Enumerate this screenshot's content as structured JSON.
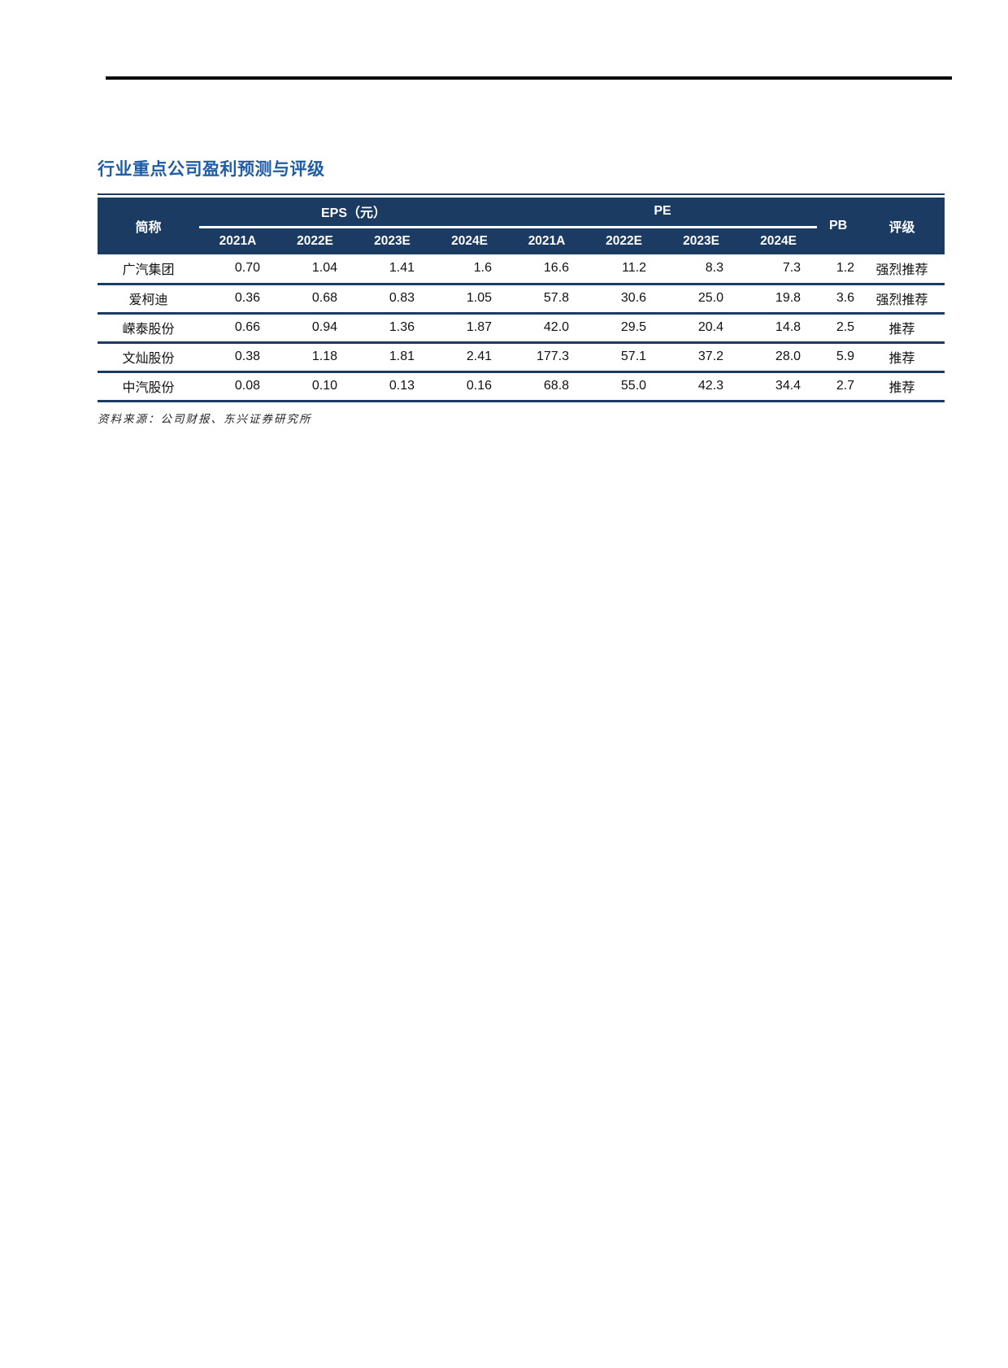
{
  "page": {
    "title": "行业重点公司盈利预测与评级",
    "source_note": "资料来源：公司财报、东兴证券研究所"
  },
  "table": {
    "headers": {
      "short_name": "简称",
      "eps_group": "EPS（元）",
      "pe_group": "PE",
      "pb": "PB",
      "rating": "评级"
    },
    "eps_years": [
      "2021A",
      "2022E",
      "2023E",
      "2024E"
    ],
    "pe_years": [
      "2021A",
      "2022E",
      "2023E",
      "2024E"
    ],
    "rows": [
      {
        "name": "广汽集团",
        "eps": [
          "0.70",
          "1.04",
          "1.41",
          "1.6"
        ],
        "pe": [
          "16.6",
          "11.2",
          "8.3",
          "7.3"
        ],
        "pb": "1.2",
        "rating": "强烈推荐"
      },
      {
        "name": "爱柯迪",
        "eps": [
          "0.36",
          "0.68",
          "0.83",
          "1.05"
        ],
        "pe": [
          "57.8",
          "30.6",
          "25.0",
          "19.8"
        ],
        "pb": "3.6",
        "rating": "强烈推荐"
      },
      {
        "name": "嵘泰股份",
        "eps": [
          "0.66",
          "0.94",
          "1.36",
          "1.87"
        ],
        "pe": [
          "42.0",
          "29.5",
          "20.4",
          "14.8"
        ],
        "pb": "2.5",
        "rating": "推荐"
      },
      {
        "name": "文灿股份",
        "eps": [
          "0.38",
          "1.18",
          "1.81",
          "2.41"
        ],
        "pe": [
          "177.3",
          "57.1",
          "37.2",
          "28.0"
        ],
        "pb": "5.9",
        "rating": "推荐"
      },
      {
        "name": "中汽股份",
        "eps": [
          "0.08",
          "0.10",
          "0.13",
          "0.16"
        ],
        "pe": [
          "68.8",
          "55.0",
          "42.3",
          "34.4"
        ],
        "pb": "2.7",
        "rating": "推荐"
      }
    ]
  },
  "colors": {
    "header_navy": "#1b3b62",
    "title_blue": "#1e5ca6",
    "top_rule_black": "#000000"
  }
}
